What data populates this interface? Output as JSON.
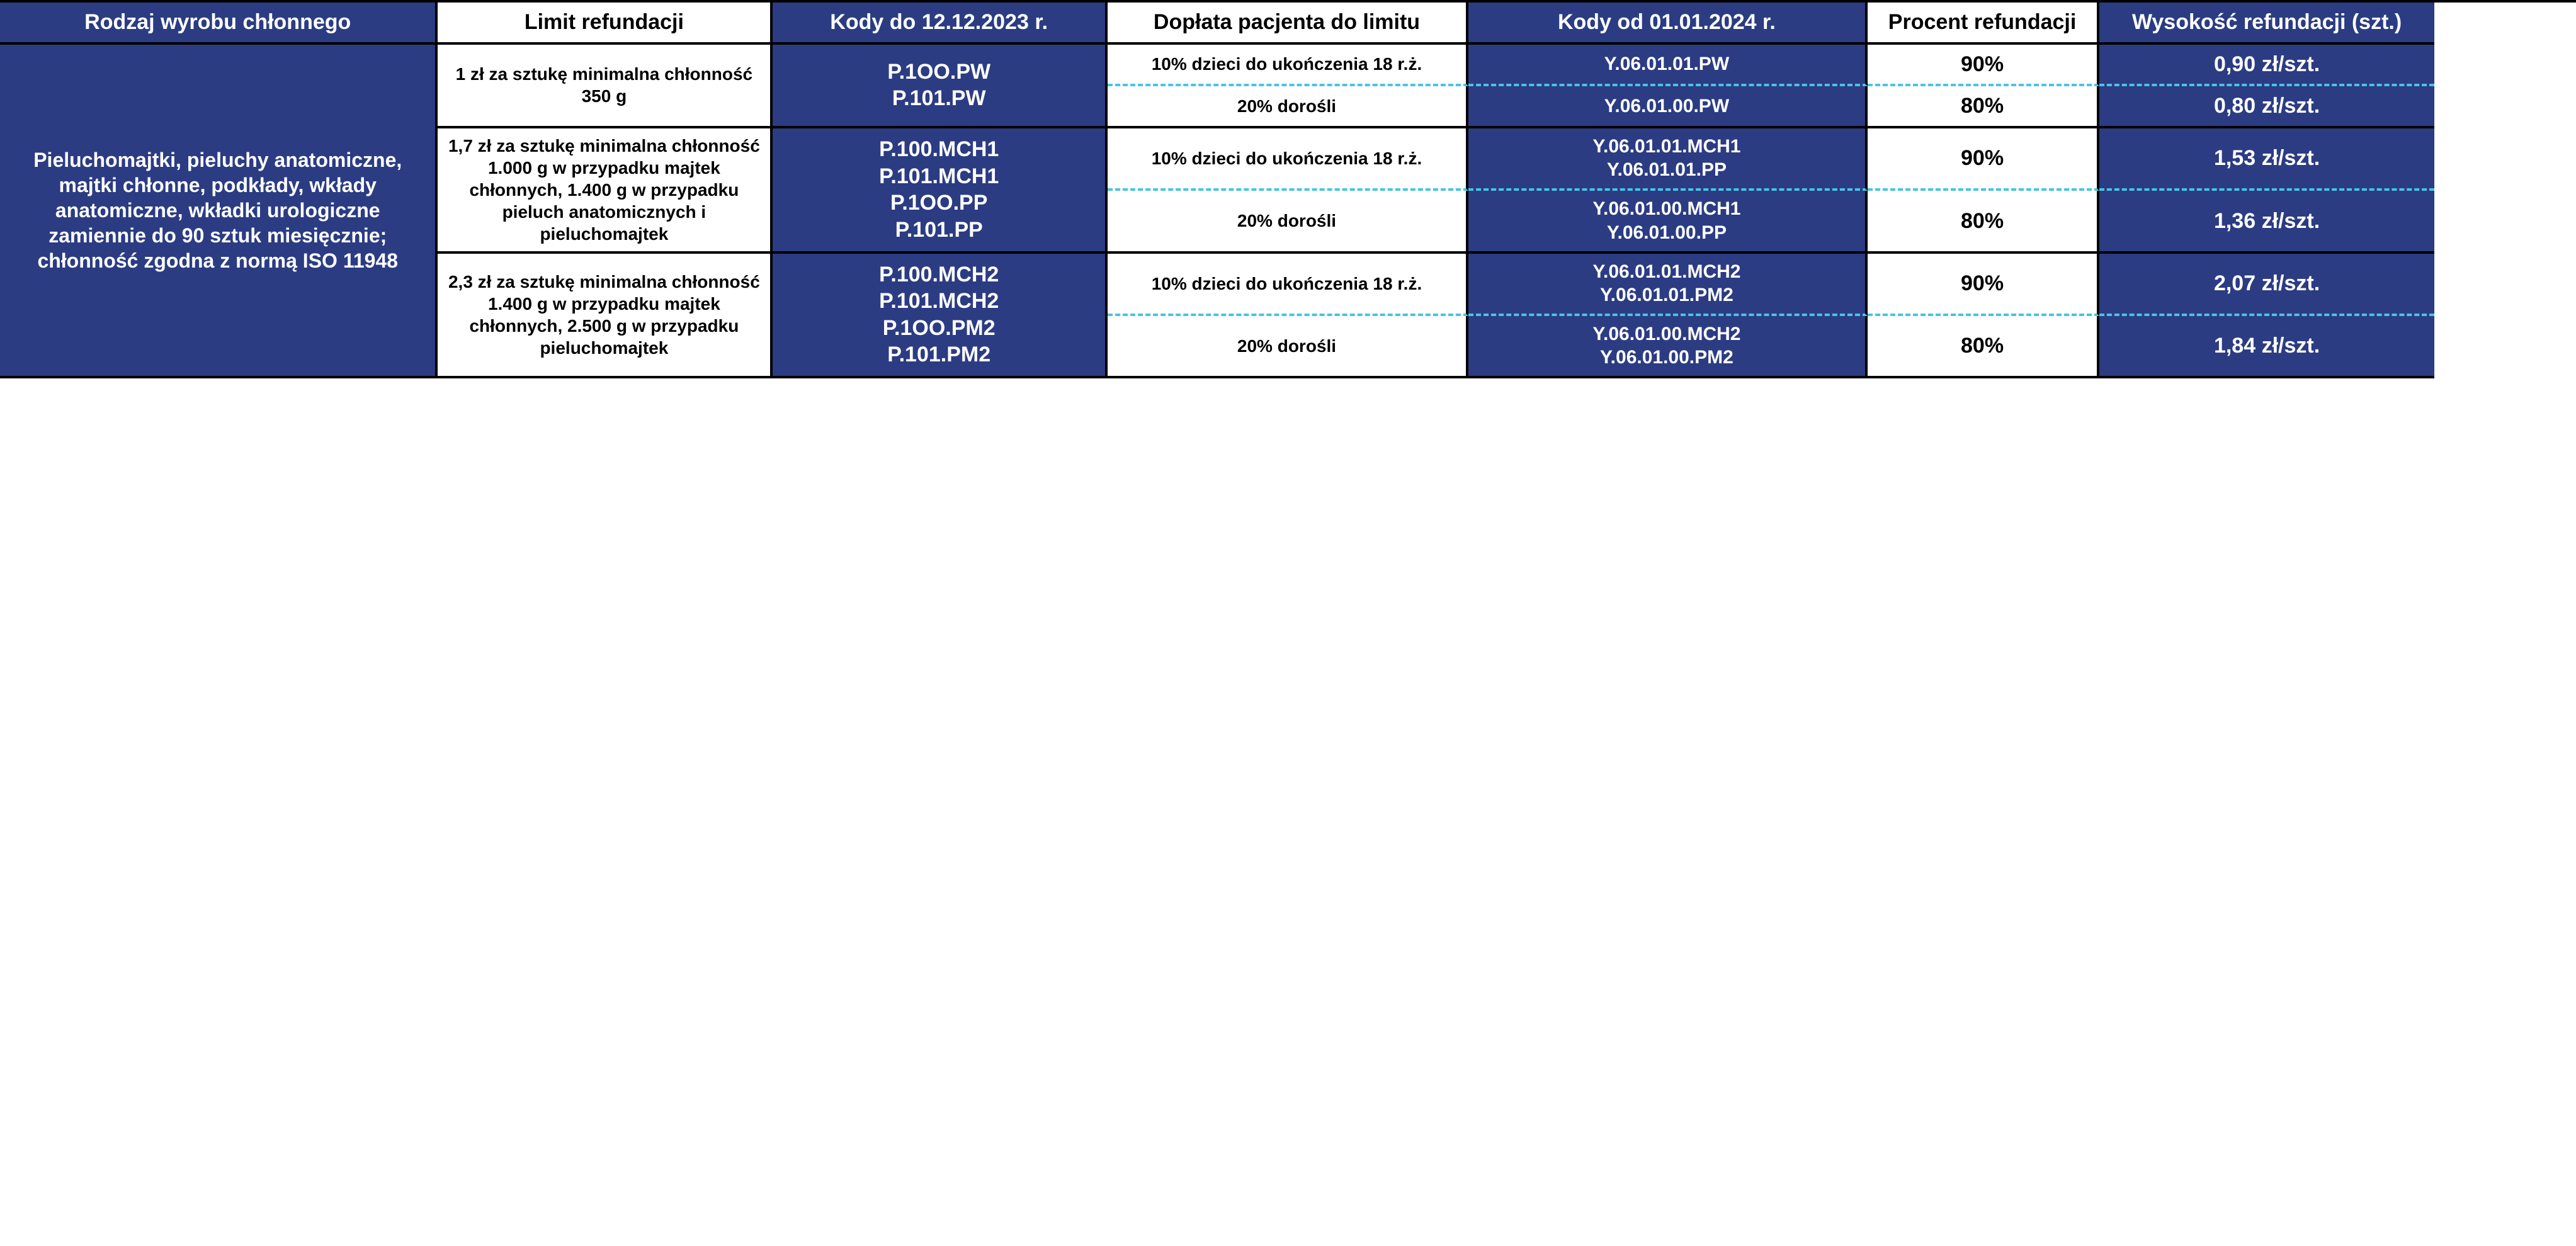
{
  "colors": {
    "blue": "#2b3c83",
    "white": "#ffffff",
    "black": "#000000",
    "dash": "#49c3e6"
  },
  "headers": {
    "c1": "Rodzaj wyrobu chłonnego",
    "c2": "Limit refundacji",
    "c3": "Kody do 12.12.2023 r.",
    "c4": "Dopłata pacjenta do limitu",
    "c5": "Kody od 01.01.2024 r.",
    "c6": "Procent refundacji",
    "c7": "Wysokość refundacji (szt.)"
  },
  "rowLabel": "Pieluchomajtki, pieluchy anatomiczne, majtki chłonne, podkłady, wkłady anatomiczne, wkładki urologiczne zamiennie do 90 sztuk miesięcznie; chłonność zgodna z normą ISO 11948",
  "groups": [
    {
      "limit": "1 zł za sztukę minimalna chłonność 350 g",
      "codesOld": [
        "P.1OO.PW",
        "P.101.PW"
      ],
      "sub": [
        {
          "doplata": "10% dzieci do ukończenia 18 r.ż.",
          "codesNew": [
            "Y.06.01.01.PW"
          ],
          "procent": "90%",
          "wys": "0,90 zł/szt."
        },
        {
          "doplata": "20% dorośli",
          "codesNew": [
            "Y.06.01.00.PW"
          ],
          "procent": "80%",
          "wys": "0,80 zł/szt."
        }
      ]
    },
    {
      "limit": "1,7 zł za sztukę minimalna chłonność 1.000 g w przypadku majtek chłonnych, 1.400 g w przypadku pieluch anatomicznych i pieluchomajtek",
      "codesOld": [
        "P.100.MCH1",
        "P.101.MCH1",
        "P.1OO.PP",
        "P.101.PP"
      ],
      "sub": [
        {
          "doplata": "10% dzieci do ukończenia 18 r.ż.",
          "codesNew": [
            "Y.06.01.01.MCH1",
            "Y.06.01.01.PP"
          ],
          "procent": "90%",
          "wys": "1,53 zł/szt."
        },
        {
          "doplata": "20% dorośli",
          "codesNew": [
            "Y.06.01.00.MCH1",
            "Y.06.01.00.PP"
          ],
          "procent": "80%",
          "wys": "1,36 zł/szt."
        }
      ]
    },
    {
      "limit": "2,3 zł za sztukę minimalna chłonność 1.400 g w przypadku majtek chłonnych, 2.500 g w przypadku pieluchomajtek",
      "codesOld": [
        "P.100.MCH2",
        "P.101.MCH2",
        "P.1OO.PM2",
        "P.101.PM2"
      ],
      "sub": [
        {
          "doplata": "10% dzieci do ukończenia 18 r.ż.",
          "codesNew": [
            "Y.06.01.01.MCH2",
            "Y.06.01.01.PM2"
          ],
          "procent": "90%",
          "wys": "2,07 zł/szt."
        },
        {
          "doplata": "20% dorośli",
          "codesNew": [
            "Y.06.01.00.MCH2",
            "Y.06.01.00.PM2"
          ],
          "procent": "80%",
          "wys": "1,84 zł/szt."
        }
      ]
    }
  ]
}
